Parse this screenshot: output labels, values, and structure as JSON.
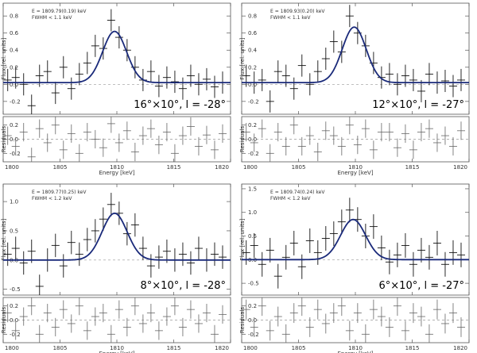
{
  "chart_data": [
    {
      "type": "scatter",
      "panel": "top-left",
      "label": "16°×10°, l = -28°",
      "annotation": [
        "E = 1809.79(0.19) keV",
        "FWHM < 1.1 keV"
      ],
      "ylabel": "Flux [rel. units]",
      "xlabel": "Energy [keV]",
      "residual_label": "Residuals",
      "xlim": [
        1800,
        1820
      ],
      "ylim": [
        -0.35,
        0.95
      ],
      "yticks": [
        "-0.2",
        "0.0",
        "0.2",
        "0.4",
        "0.6",
        "0.8"
      ],
      "ytick_values": [
        -0.2,
        0.0,
        0.2,
        0.4,
        0.6,
        0.8
      ],
      "xticks": [
        "1800",
        "1805",
        "1810",
        "1815",
        "1820"
      ],
      "res_ylim": [
        -0.32,
        0.32
      ],
      "res_yticks": [
        "0.2",
        "0.0",
        "-0.2"
      ],
      "res_ytick_values": [
        0.2,
        0.0,
        -0.2
      ],
      "model": {
        "center": 1809.8,
        "amplitude": 0.6,
        "sigma": 1.05,
        "offset": 0.02
      },
      "x": [
        1800.4,
        1801.1,
        1801.8,
        1802.5,
        1803.2,
        1803.9,
        1804.6,
        1805.3,
        1806.0,
        1806.7,
        1807.4,
        1808.1,
        1808.8,
        1809.5,
        1810.2,
        1810.9,
        1811.6,
        1812.3,
        1813.0,
        1813.7,
        1814.4,
        1815.1,
        1815.8,
        1816.5,
        1817.2,
        1817.9,
        1818.6,
        1819.3
      ],
      "y": [
        0.05,
        0.08,
        0.0,
        -0.25,
        0.1,
        0.15,
        -0.1,
        0.2,
        -0.05,
        0.12,
        0.25,
        0.45,
        0.42,
        0.75,
        0.55,
        0.4,
        0.2,
        0.05,
        0.15,
        -0.02,
        0.08,
        0.03,
        -0.05,
        0.1,
        0.0,
        0.06,
        -0.03,
        0.02
      ],
      "yerr": 0.13,
      "residuals": [
        0.05,
        -0.1,
        0.1,
        -0.25,
        0.15,
        -0.05,
        0.2,
        -0.15,
        0.08,
        -0.2,
        0.1,
        0.0,
        -0.12,
        0.22,
        -0.05,
        0.12,
        -0.18,
        0.05,
        0.15,
        -0.08,
        0.1,
        -0.2,
        0.05,
        0.18,
        -0.1,
        0.06,
        -0.15,
        0.08
      ],
      "res_err": 0.13
    },
    {
      "type": "scatter",
      "panel": "top-right",
      "label": "12°×10°, l = -27°",
      "annotation": [
        "E = 1809.93(0.20) keV",
        "FWHM < 1.1 keV"
      ],
      "ylabel": "Flux [rel. units]",
      "xlabel": "Energy [keV]",
      "residual_label": "Residuals",
      "xlim": [
        1800,
        1820
      ],
      "ylim": [
        -0.35,
        0.95
      ],
      "yticks": [
        "-0.2",
        "0.0",
        "0.2",
        "0.4",
        "0.6",
        "0.8"
      ],
      "ytick_values": [
        -0.2,
        0.0,
        0.2,
        0.4,
        0.6,
        0.8
      ],
      "xticks": [
        "1800",
        "1805",
        "1810",
        "1815",
        "1820"
      ],
      "res_ylim": [
        -0.32,
        0.32
      ],
      "res_yticks": [
        "0.2",
        "0.0",
        "-0.2"
      ],
      "res_ytick_values": [
        0.2,
        0.0,
        -0.2
      ],
      "model": {
        "center": 1809.9,
        "amplitude": 0.65,
        "sigma": 1.05,
        "offset": 0.02
      },
      "x": [
        1800.4,
        1801.1,
        1801.8,
        1802.5,
        1803.2,
        1803.9,
        1804.6,
        1805.3,
        1806.0,
        1806.7,
        1807.4,
        1808.1,
        1808.8,
        1809.5,
        1810.2,
        1810.9,
        1811.6,
        1812.3,
        1813.0,
        1813.7,
        1814.4,
        1815.1,
        1815.8,
        1816.5,
        1817.2,
        1817.9,
        1818.6,
        1819.3
      ],
      "y": [
        0.1,
        0.02,
        0.05,
        -0.2,
        0.15,
        0.1,
        -0.05,
        0.22,
        0.0,
        0.15,
        0.3,
        0.5,
        0.38,
        0.8,
        0.6,
        0.45,
        0.25,
        0.08,
        0.12,
        0.0,
        0.1,
        0.05,
        -0.08,
        0.12,
        0.02,
        0.04,
        -0.02,
        0.05
      ],
      "yerr": 0.13,
      "residuals": [
        0.1,
        -0.05,
        0.15,
        -0.2,
        0.1,
        -0.1,
        0.2,
        -0.1,
        0.05,
        -0.18,
        0.12,
        0.05,
        -0.1,
        0.2,
        -0.08,
        0.15,
        -0.15,
        0.1,
        0.1,
        -0.12,
        0.08,
        -0.15,
        0.1,
        0.15,
        -0.05,
        0.05,
        -0.1,
        0.12
      ],
      "res_err": 0.13
    },
    {
      "type": "scatter",
      "panel": "bottom-left",
      "label": "8°×10°, l = -28°",
      "annotation": [
        "E = 1809.77(0.25) keV",
        "FWHM < 1.2 keV"
      ],
      "ylabel": "Flux [rel. units]",
      "xlabel": "Energy [keV]",
      "residual_label": "Residuals",
      "xlim": [
        1800,
        1820
      ],
      "ylim": [
        -0.6,
        1.3
      ],
      "yticks": [
        "-0.5",
        "0.0",
        "0.5",
        "1.0"
      ],
      "ytick_values": [
        -0.5,
        0.0,
        0.5,
        1.0
      ],
      "xticks": [
        "1800",
        "1805",
        "1810",
        "1815",
        "1820"
      ],
      "res_ylim": [
        -0.32,
        0.32
      ],
      "res_yticks": [
        "0.2",
        "0.0",
        "-0.2"
      ],
      "res_ytick_values": [
        0.2,
        0.0,
        -0.2
      ],
      "model": {
        "center": 1809.8,
        "amplitude": 0.8,
        "sigma": 1.1,
        "offset": 0.0
      },
      "x": [
        1800.4,
        1801.1,
        1801.8,
        1802.5,
        1803.2,
        1803.9,
        1804.6,
        1805.3,
        1806.0,
        1806.7,
        1807.4,
        1808.1,
        1808.8,
        1809.5,
        1810.2,
        1810.9,
        1811.6,
        1812.3,
        1813.0,
        1813.7,
        1814.4,
        1815.1,
        1815.8,
        1816.5,
        1817.2,
        1817.9,
        1818.6,
        1819.3
      ],
      "y": [
        0.1,
        0.2,
        -0.05,
        0.15,
        -0.45,
        0.0,
        0.25,
        -0.1,
        0.3,
        0.1,
        0.35,
        0.5,
        0.7,
        0.95,
        0.8,
        0.45,
        0.6,
        0.2,
        -0.1,
        0.05,
        0.15,
        0.0,
        0.1,
        -0.05,
        0.2,
        0.0,
        0.1,
        0.05
      ],
      "yerr": 0.2,
      "residuals": [
        0.1,
        -0.15,
        0.05,
        0.2,
        -0.2,
        0.1,
        -0.1,
        0.15,
        -0.05,
        0.2,
        -0.15,
        0.05,
        0.1,
        -0.2,
        0.15,
        -0.1,
        0.2,
        -0.05,
        0.1,
        -0.15,
        0.05,
        0.2,
        -0.1,
        0.15,
        -0.05,
        0.1,
        -0.2,
        0.08
      ],
      "res_err": 0.13
    },
    {
      "type": "scatter",
      "panel": "bottom-right",
      "label": "6°×10°, l = -27°",
      "annotation": [
        "E = 1809.74(0.24) keV",
        "FWHM < 1.2 keV"
      ],
      "ylabel": "Flux [rel. units]",
      "xlabel": "Energy [keV]",
      "residual_label": "Residuals",
      "xlim": [
        1800,
        1820
      ],
      "ylim": [
        -0.75,
        1.6
      ],
      "yticks": [
        "-0.5",
        "0.0",
        "0.5",
        "1.0",
        "1.5"
      ],
      "ytick_values": [
        -0.5,
        0.0,
        0.5,
        1.0,
        1.5
      ],
      "xticks": [
        "1800",
        "1805",
        "1810",
        "1815",
        "1820"
      ],
      "res_ylim": [
        -0.32,
        0.32
      ],
      "res_yticks": [
        "0.2",
        "0.0",
        "-0.2"
      ],
      "res_ytick_values": [
        0.2,
        0.0,
        -0.2
      ],
      "model": {
        "center": 1809.8,
        "amplitude": 0.85,
        "sigma": 1.1,
        "offset": 0.0
      },
      "x": [
        1800.4,
        1801.1,
        1801.8,
        1802.5,
        1803.2,
        1803.9,
        1804.6,
        1805.3,
        1806.0,
        1806.7,
        1807.4,
        1808.1,
        1808.8,
        1809.5,
        1810.2,
        1810.9,
        1811.6,
        1812.3,
        1813.0,
        1813.7,
        1814.4,
        1815.1,
        1815.8,
        1816.5,
        1817.2,
        1817.9,
        1818.6,
        1819.3
      ],
      "y": [
        0.15,
        0.3,
        -0.1,
        0.2,
        -0.35,
        0.05,
        0.35,
        -0.15,
        0.4,
        0.15,
        0.45,
        0.55,
        0.8,
        1.05,
        0.85,
        0.5,
        0.7,
        0.25,
        -0.05,
        0.1,
        0.3,
        -0.1,
        0.2,
        0.05,
        0.35,
        -0.1,
        0.15,
        0.1
      ],
      "yerr": 0.26,
      "residuals": [
        0.15,
        -0.1,
        0.2,
        -0.15,
        0.05,
        -0.2,
        0.1,
        0.2,
        -0.1,
        0.15,
        -0.05,
        0.1,
        0.2,
        -0.15,
        0.1,
        -0.2,
        0.15,
        0.05,
        -0.1,
        0.2,
        -0.15,
        0.1,
        0.05,
        -0.2,
        0.15,
        -0.05,
        0.1,
        -0.1
      ],
      "res_err": 0.14
    }
  ],
  "colors": {
    "model": "#1a2a7a",
    "data": "#111111",
    "residual": "#666666",
    "frame": "#555555",
    "zero": "#999999"
  }
}
